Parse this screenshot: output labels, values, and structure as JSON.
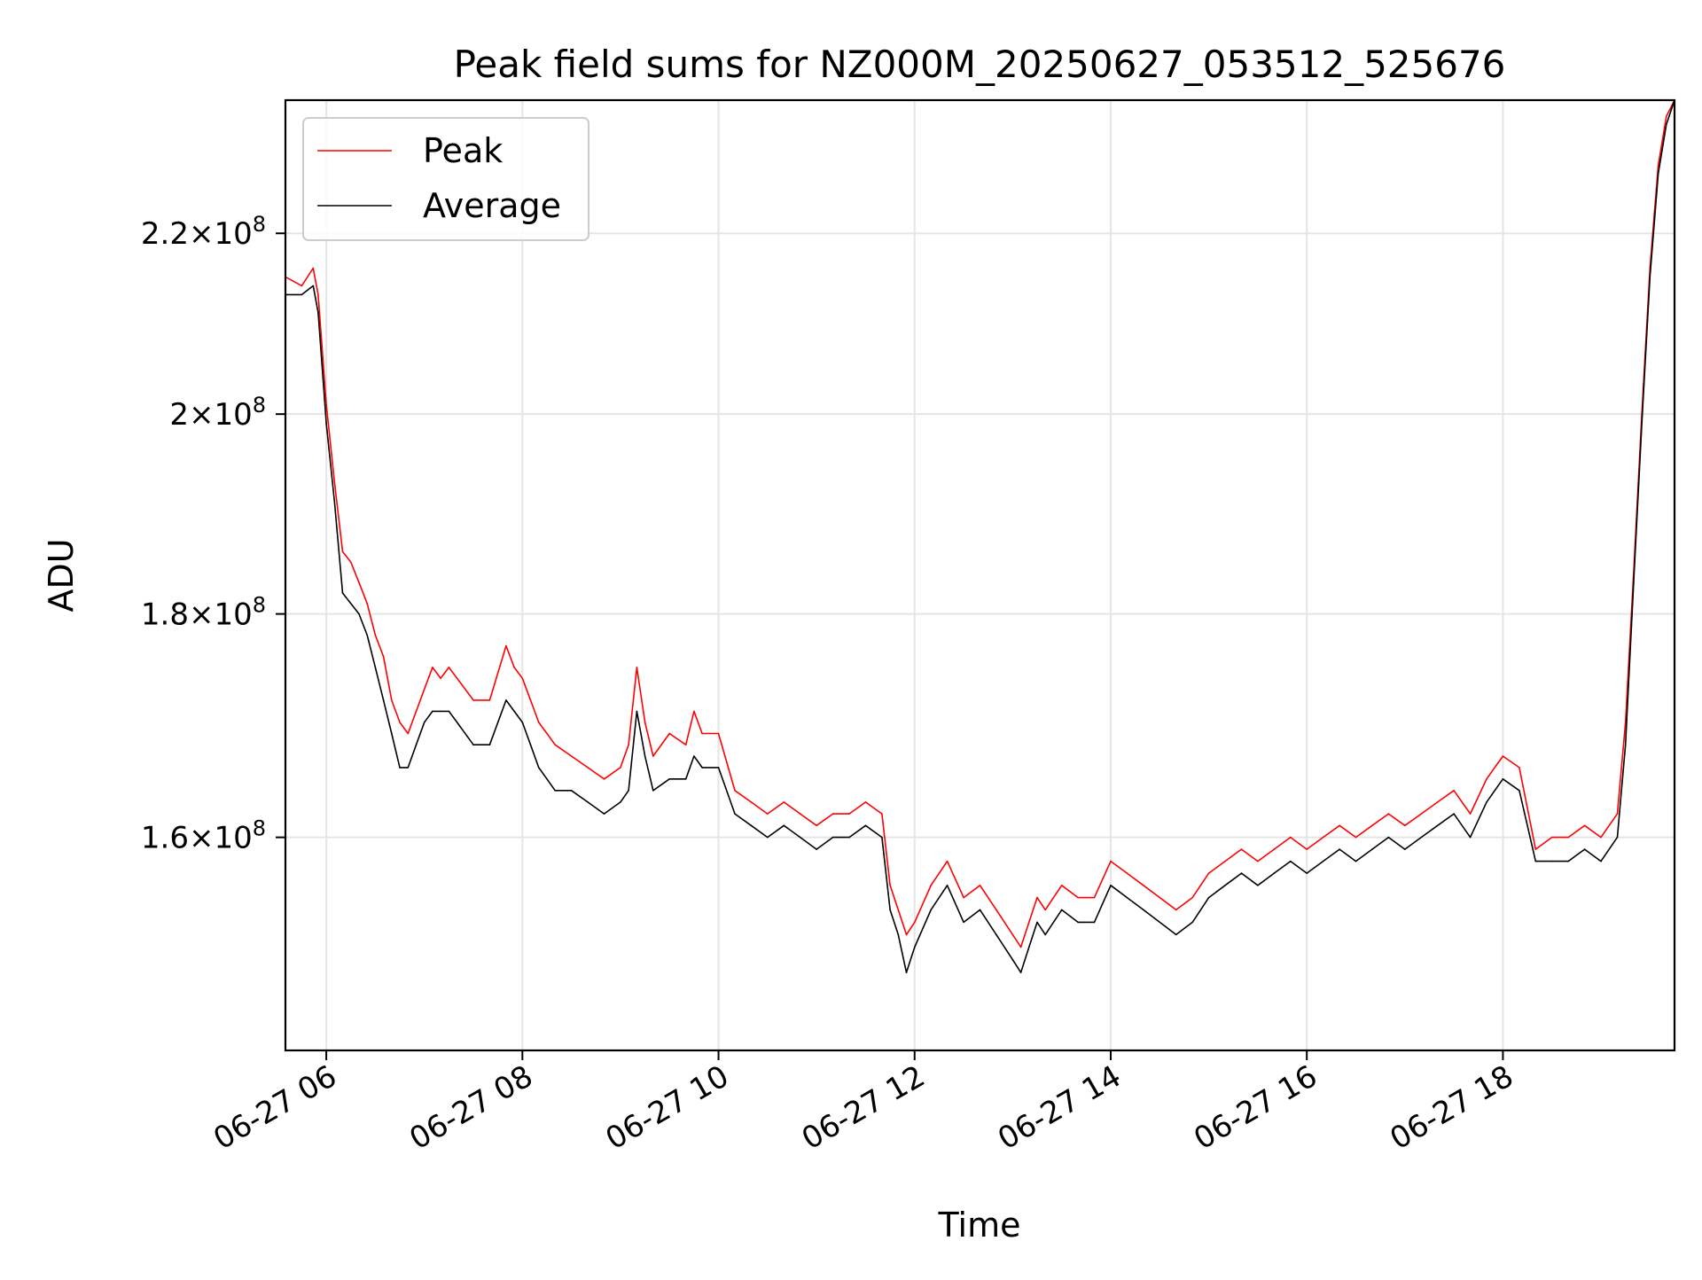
{
  "chart_data": {
    "type": "line",
    "title": "Peak field sums for NZ000M_20250627_053512_525676",
    "xlabel": "Time",
    "ylabel": "ADU",
    "x_range": [
      "2025-06-27 05:35",
      "2025-06-27 19:45"
    ],
    "y_scale": "log",
    "ylim": [
      143000000,
      236000000
    ],
    "x_ticks": [
      {
        "value": "2025-06-27 06:00",
        "label": "06-27 06"
      },
      {
        "value": "2025-06-27 08:00",
        "label": "06-27 08"
      },
      {
        "value": "2025-06-27 10:00",
        "label": "06-27 10"
      },
      {
        "value": "2025-06-27 12:00",
        "label": "06-27 12"
      },
      {
        "value": "2025-06-27 14:00",
        "label": "06-27 14"
      },
      {
        "value": "2025-06-27 16:00",
        "label": "06-27 16"
      },
      {
        "value": "2025-06-27 18:00",
        "label": "06-27 18"
      }
    ],
    "y_ticks": [
      {
        "value": 160000000,
        "mantissa": "1.6",
        "exp": "8"
      },
      {
        "value": 180000000,
        "mantissa": "1.8",
        "exp": "8"
      },
      {
        "value": 200000000,
        "mantissa": "2",
        "exp": "8"
      },
      {
        "value": 220000000,
        "mantissa": "2.2",
        "exp": "8"
      }
    ],
    "grid": true,
    "legend_position": "top-left",
    "x": [
      "2025-06-27 05:35",
      "2025-06-27 05:45",
      "2025-06-27 05:52",
      "2025-06-27 05:55",
      "2025-06-27 06:00",
      "2025-06-27 06:05",
      "2025-06-27 06:10",
      "2025-06-27 06:15",
      "2025-06-27 06:20",
      "2025-06-27 06:25",
      "2025-06-27 06:30",
      "2025-06-27 06:35",
      "2025-06-27 06:40",
      "2025-06-27 06:45",
      "2025-06-27 06:50",
      "2025-06-27 06:55",
      "2025-06-27 07:00",
      "2025-06-27 07:05",
      "2025-06-27 07:10",
      "2025-06-27 07:15",
      "2025-06-27 07:20",
      "2025-06-27 07:30",
      "2025-06-27 07:40",
      "2025-06-27 07:50",
      "2025-06-27 07:55",
      "2025-06-27 08:00",
      "2025-06-27 08:05",
      "2025-06-27 08:10",
      "2025-06-27 08:15",
      "2025-06-27 08:20",
      "2025-06-27 08:30",
      "2025-06-27 08:40",
      "2025-06-27 08:50",
      "2025-06-27 09:00",
      "2025-06-27 09:05",
      "2025-06-27 09:10",
      "2025-06-27 09:15",
      "2025-06-27 09:20",
      "2025-06-27 09:30",
      "2025-06-27 09:40",
      "2025-06-27 09:45",
      "2025-06-27 09:50",
      "2025-06-27 10:00",
      "2025-06-27 10:10",
      "2025-06-27 10:20",
      "2025-06-27 10:30",
      "2025-06-27 10:40",
      "2025-06-27 10:50",
      "2025-06-27 11:00",
      "2025-06-27 11:10",
      "2025-06-27 11:20",
      "2025-06-27 11:30",
      "2025-06-27 11:40",
      "2025-06-27 11:45",
      "2025-06-27 11:50",
      "2025-06-27 11:55",
      "2025-06-27 12:00",
      "2025-06-27 12:10",
      "2025-06-27 12:20",
      "2025-06-27 12:30",
      "2025-06-27 12:40",
      "2025-06-27 12:50",
      "2025-06-27 13:00",
      "2025-06-27 13:05",
      "2025-06-27 13:10",
      "2025-06-27 13:15",
      "2025-06-27 13:20",
      "2025-06-27 13:30",
      "2025-06-27 13:40",
      "2025-06-27 13:50",
      "2025-06-27 14:00",
      "2025-06-27 14:10",
      "2025-06-27 14:20",
      "2025-06-27 14:30",
      "2025-06-27 14:40",
      "2025-06-27 14:50",
      "2025-06-27 15:00",
      "2025-06-27 15:10",
      "2025-06-27 15:20",
      "2025-06-27 15:30",
      "2025-06-27 15:40",
      "2025-06-27 15:50",
      "2025-06-27 16:00",
      "2025-06-27 16:10",
      "2025-06-27 16:20",
      "2025-06-27 16:30",
      "2025-06-27 16:40",
      "2025-06-27 16:50",
      "2025-06-27 17:00",
      "2025-06-27 17:10",
      "2025-06-27 17:20",
      "2025-06-27 17:30",
      "2025-06-27 17:40",
      "2025-06-27 17:50",
      "2025-06-27 18:00",
      "2025-06-27 18:10",
      "2025-06-27 18:20",
      "2025-06-27 18:30",
      "2025-06-27 18:40",
      "2025-06-27 18:50",
      "2025-06-27 19:00",
      "2025-06-27 19:10",
      "2025-06-27 19:15",
      "2025-06-27 19:20",
      "2025-06-27 19:25",
      "2025-06-27 19:30",
      "2025-06-27 19:35",
      "2025-06-27 19:40",
      "2025-06-27 19:45"
    ],
    "series": [
      {
        "name": "Peak",
        "color": "#ff0000",
        "values": [
          215000000,
          214000000,
          216000000,
          213000000,
          201000000,
          193000000,
          186000000,
          185000000,
          183000000,
          181000000,
          178000000,
          176000000,
          172000000,
          170000000,
          169000000,
          171000000,
          173000000,
          175000000,
          174000000,
          175000000,
          174000000,
          172000000,
          172000000,
          177000000,
          175000000,
          174000000,
          172000000,
          170000000,
          169000000,
          168000000,
          167000000,
          166000000,
          165000000,
          166000000,
          168000000,
          175000000,
          170000000,
          167000000,
          169000000,
          168000000,
          171000000,
          169000000,
          169000000,
          164000000,
          163000000,
          162000000,
          163000000,
          162000000,
          161000000,
          162000000,
          162000000,
          163000000,
          162000000,
          156000000,
          154000000,
          152000000,
          153000000,
          156000000,
          158000000,
          155000000,
          156000000,
          154000000,
          152000000,
          151000000,
          153000000,
          155000000,
          154000000,
          156000000,
          155000000,
          155000000,
          158000000,
          157000000,
          156000000,
          155000000,
          154000000,
          155000000,
          157000000,
          158000000,
          159000000,
          158000000,
          159000000,
          160000000,
          159000000,
          160000000,
          161000000,
          160000000,
          161000000,
          162000000,
          161000000,
          162000000,
          163000000,
          164000000,
          162000000,
          165000000,
          167000000,
          166000000,
          159000000,
          160000000,
          160000000,
          161000000,
          160000000,
          162000000,
          170000000,
          184000000,
          200000000,
          216000000,
          228000000,
          234000000,
          236000000
        ]
      },
      {
        "name": "Average",
        "color": "#000000",
        "values": [
          213000000,
          213000000,
          214000000,
          211000000,
          199000000,
          191000000,
          182000000,
          181000000,
          180000000,
          178000000,
          175000000,
          172000000,
          169000000,
          166000000,
          166000000,
          168000000,
          170000000,
          171000000,
          171000000,
          171000000,
          170000000,
          168000000,
          168000000,
          172000000,
          171000000,
          170000000,
          168000000,
          166000000,
          165000000,
          164000000,
          164000000,
          163000000,
          162000000,
          163000000,
          164000000,
          171000000,
          167000000,
          164000000,
          165000000,
          165000000,
          167000000,
          166000000,
          166000000,
          162000000,
          161000000,
          160000000,
          161000000,
          160000000,
          159000000,
          160000000,
          160000000,
          161000000,
          160000000,
          154000000,
          152000000,
          149000000,
          151000000,
          154000000,
          156000000,
          153000000,
          154000000,
          152000000,
          150000000,
          149000000,
          151000000,
          153000000,
          152000000,
          154000000,
          153000000,
          153000000,
          156000000,
          155000000,
          154000000,
          153000000,
          152000000,
          153000000,
          155000000,
          156000000,
          157000000,
          156000000,
          157000000,
          158000000,
          157000000,
          158000000,
          159000000,
          158000000,
          159000000,
          160000000,
          159000000,
          160000000,
          161000000,
          162000000,
          160000000,
          163000000,
          165000000,
          164000000,
          158000000,
          158000000,
          158000000,
          159000000,
          158000000,
          160000000,
          168000000,
          183000000,
          199000000,
          215000000,
          227000000,
          233000000,
          236000000
        ]
      }
    ]
  }
}
